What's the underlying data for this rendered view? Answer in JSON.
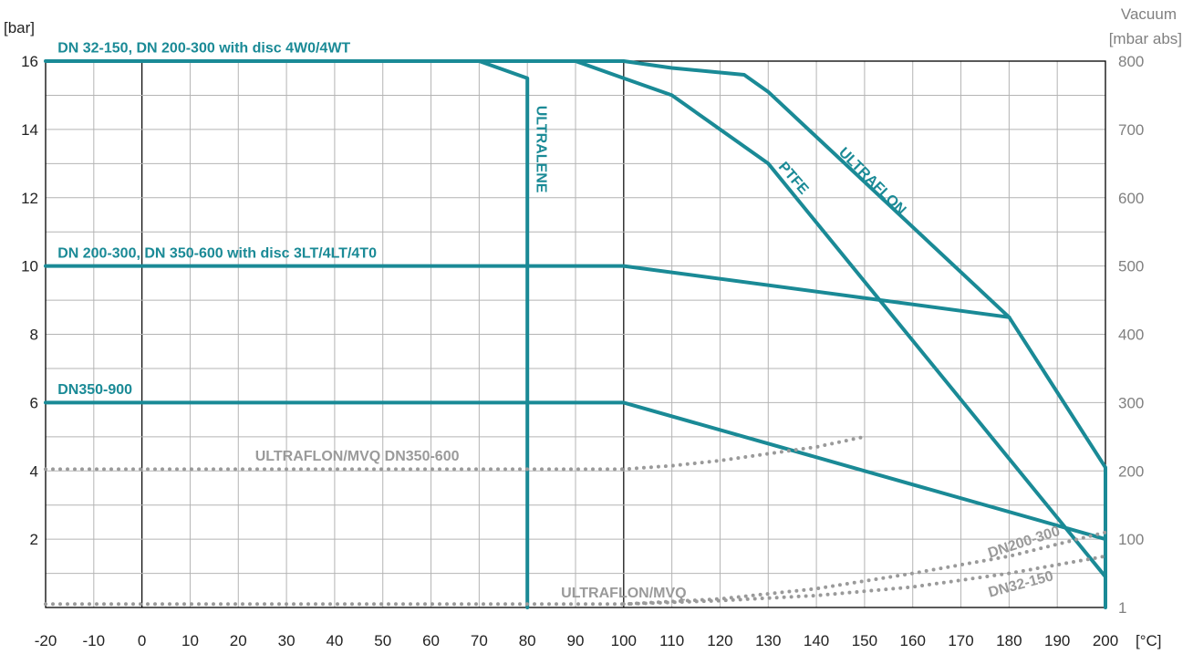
{
  "chart_data": {
    "type": "line",
    "colors": {
      "teal": "#1a8a96",
      "grey": "#9a9a9a",
      "grid": "#b4b4b4",
      "axis": "#000000"
    },
    "y_unit": "[bar]",
    "x_unit": "[°C]",
    "y2_title": "Vacuum",
    "y2_unit": "[mbar abs]",
    "xlim": [
      -20,
      200
    ],
    "ylim": [
      0,
      16
    ],
    "x_ticks": [
      -20,
      -10,
      0,
      10,
      20,
      30,
      40,
      50,
      60,
      70,
      80,
      90,
      100,
      110,
      120,
      130,
      140,
      150,
      160,
      170,
      180,
      190,
      200
    ],
    "y_ticks": [
      2,
      4,
      6,
      8,
      10,
      12,
      14,
      16
    ],
    "y2_ticks": [
      {
        "label": "800",
        "y": 16
      },
      {
        "label": "700",
        "y": 14
      },
      {
        "label": "600",
        "y": 12
      },
      {
        "label": "500",
        "y": 10
      },
      {
        "label": "400",
        "y": 8
      },
      {
        "label": "300",
        "y": 6
      },
      {
        "label": "200",
        "y": 4
      },
      {
        "label": "100",
        "y": 2
      },
      {
        "label": "1",
        "y": 0
      }
    ],
    "grid": true,
    "series": [
      {
        "name": "DN 32-150, DN 200-300 with disc 4W0/4WT",
        "style": "solid",
        "color": "teal",
        "x": [
          -20,
          100,
          110,
          125,
          130,
          180,
          200,
          200
        ],
        "y": [
          16,
          16,
          15.8,
          15.6,
          15.1,
          8.5,
          4.1,
          0
        ]
      },
      {
        "name": "ULTRAFLON",
        "style": "solid",
        "color": "teal",
        "x": [
          90,
          100,
          110,
          130,
          200
        ],
        "y": [
          16,
          15.5,
          15,
          13,
          0.9
        ]
      },
      {
        "name": "PTFE",
        "style": "solid",
        "color": "teal",
        "x": [
          70,
          80,
          80
        ],
        "y": [
          16,
          15.5,
          0
        ]
      },
      {
        "name": "ULTRALENE",
        "style": "solid",
        "color": "teal",
        "x": [
          -20,
          100,
          180
        ],
        "y": [
          10,
          10,
          8.5
        ]
      },
      {
        "name": "DN 200-300, DN 350-600 with disc 3LT/4LT/4T0",
        "style": "solid",
        "color": "teal",
        "x": [
          -20,
          100,
          150,
          200
        ],
        "y": [
          6,
          6,
          4,
          2
        ]
      },
      {
        "name": "DN350-900",
        "style": "dotted",
        "color": "grey",
        "x": [
          -20,
          100,
          110,
          120,
          130,
          140,
          150
        ],
        "y": [
          4.05,
          4.05,
          4.15,
          4.3,
          4.5,
          4.7,
          5
        ]
      },
      {
        "name": "ULTRAFLON/MVQ DN350-600",
        "style": "dotted",
        "color": "grey",
        "x": [
          -20,
          100,
          120,
          140,
          160,
          180,
          200
        ],
        "y": [
          0.1,
          0.1,
          0.25,
          0.55,
          1.0,
          1.5,
          2.2
        ]
      },
      {
        "name": "ULTRAFLON/MVQ",
        "style": "dotted",
        "color": "grey",
        "x": [
          100,
          120,
          140,
          160,
          180,
          200
        ],
        "y": [
          0.1,
          0.2,
          0.35,
          0.6,
          1.0,
          1.5
        ]
      }
    ],
    "annotations": [
      {
        "text": "DN 32-150, DN 200-300 with disc 4W0/4WT",
        "x": -17.5,
        "y": 16.25,
        "rotate": 0,
        "color": "teal"
      },
      {
        "text": "DN 200-300, DN 350-600 with disc 3LT/4LT/4T0",
        "x": -17.5,
        "y": 10.25,
        "rotate": 0,
        "color": "teal"
      },
      {
        "text": "DN350-900",
        "x": -17.5,
        "y": 6.25,
        "rotate": 0,
        "color": "teal"
      },
      {
        "text": "ULTRALENE",
        "x": 82,
        "y": 14.7,
        "rotate": 90,
        "color": "teal"
      },
      {
        "text": "PTFE",
        "x": 132,
        "y": 12.9,
        "rotate": 49,
        "color": "teal"
      },
      {
        "text": "ULTRAFLON",
        "x": 144.5,
        "y": 13.3,
        "rotate": 45,
        "color": "teal"
      },
      {
        "text": "ULTRAFLON/MVQ DN350-600",
        "x": 23.5,
        "y": 4.3,
        "rotate": 0,
        "color": "grey"
      },
      {
        "text": "ULTRAFLON/MVQ",
        "x": 87,
        "y": 0.3,
        "rotate": 0,
        "color": "grey"
      },
      {
        "text": "DN200-300",
        "x": 176,
        "y": 1.45,
        "rotate": -18,
        "color": "grey"
      },
      {
        "text": "DN32-150",
        "x": 176,
        "y": 0.3,
        "rotate": -15,
        "color": "grey"
      }
    ]
  }
}
